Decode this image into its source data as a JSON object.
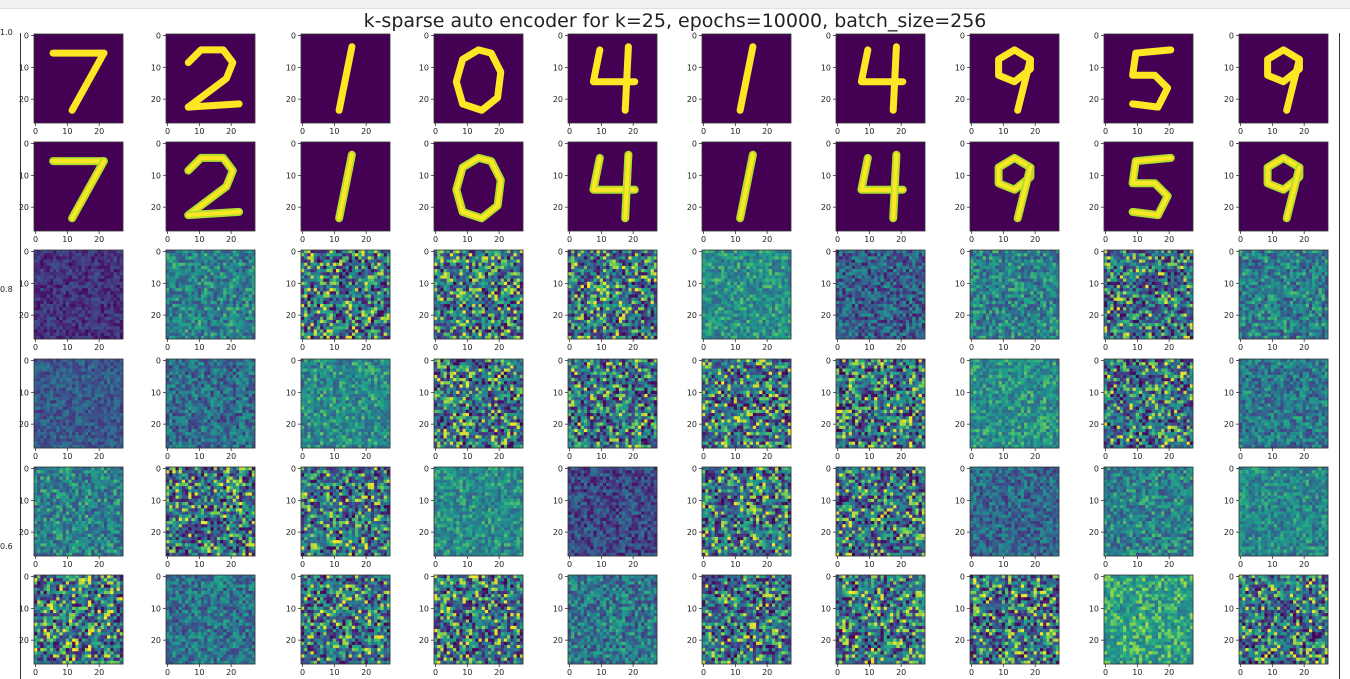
{
  "title": "k-sparse auto encoder for k=25, epochs=10000, batch_size=256",
  "outer_axis": {
    "ticks": [
      "1.0",
      "0.8",
      "0.6"
    ]
  },
  "chart_data": {
    "type": "heatmap",
    "title": "k-sparse auto encoder for k=25, epochs=10000, batch_size=256",
    "grid": {
      "rows": 6,
      "cols": 10
    },
    "image_size": [
      28,
      28
    ],
    "colormap": "viridis",
    "subplot_x_ticks": [
      "0",
      "10",
      "20"
    ],
    "subplot_y_ticks": [
      "0",
      "10",
      "20"
    ],
    "outer_y_ticks": [
      "1.0",
      "0.8",
      "0.6"
    ],
    "row_1_original_digits": [
      7,
      2,
      1,
      0,
      4,
      1,
      4,
      9,
      5,
      9
    ],
    "row_2_reconstructed_digits": [
      7,
      2,
      1,
      0,
      4,
      1,
      4,
      9,
      5,
      9
    ],
    "rows_3_to_6": "learned feature weight maps (noise-like heatmaps)"
  }
}
